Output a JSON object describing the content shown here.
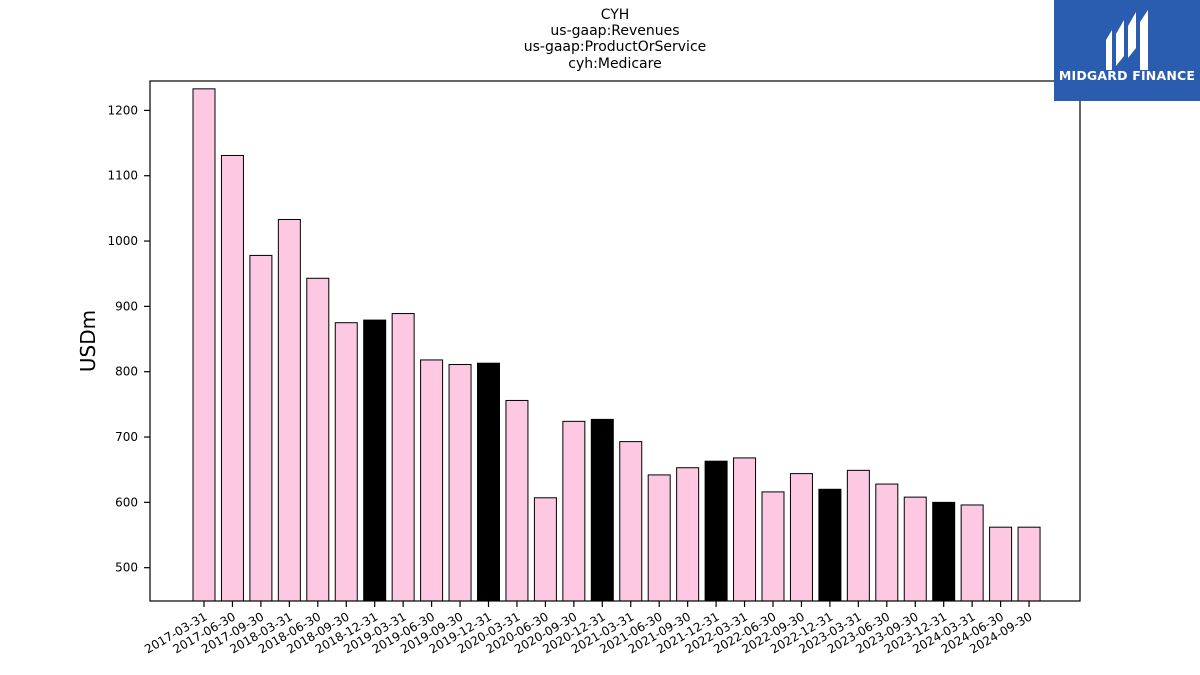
{
  "chart_data": {
    "type": "bar",
    "title": [
      "CYH",
      "us-gaap:Revenues",
      "us-gaap:ProductOrService",
      "cyh:Medicare"
    ],
    "xlabel": "",
    "ylabel": "USDm",
    "ylim": [
      449,
      1245
    ],
    "yticks": [
      500,
      600,
      700,
      800,
      900,
      1000,
      1100,
      1200
    ],
    "categories": [
      "2017-03-31",
      "2017-06-30",
      "2017-09-30",
      "2018-03-31",
      "2018-06-30",
      "2018-09-30",
      "2018-12-31",
      "2019-03-31",
      "2019-06-30",
      "2019-09-30",
      "2019-12-31",
      "2020-03-31",
      "2020-06-30",
      "2020-09-30",
      "2020-12-31",
      "2021-03-31",
      "2021-06-30",
      "2021-09-30",
      "2021-12-31",
      "2022-03-31",
      "2022-06-30",
      "2022-09-30",
      "2022-12-31",
      "2023-03-31",
      "2023-06-30",
      "2023-09-30",
      "2023-12-31",
      "2024-03-31",
      "2024-06-30",
      "2024-09-30"
    ],
    "values": [
      1233,
      1131,
      978,
      1033,
      943,
      875,
      879,
      889,
      818,
      811,
      813,
      756,
      607,
      724,
      727,
      693,
      642,
      653,
      663,
      668,
      616,
      644,
      620,
      649,
      628,
      608,
      600,
      596,
      562,
      562
    ],
    "highlighted": [
      "2018-12-31",
      "2019-12-31",
      "2020-12-31",
      "2021-12-31",
      "2022-12-31",
      "2023-12-31"
    ],
    "colors": {
      "normal": "#fdc9e2",
      "highlight": "#000000",
      "edge": "#000000"
    },
    "grid": false,
    "legend": "none"
  },
  "logo": {
    "text": "MIDGARD FINANCE",
    "color": "#2a5db0"
  }
}
